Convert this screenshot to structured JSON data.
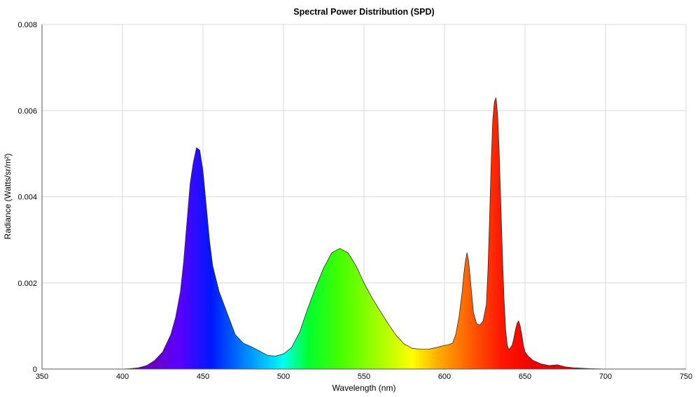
{
  "chart_data": {
    "type": "area",
    "title": "Spectral Power Distribution (SPD)",
    "xlabel": "Wavelength (nm)",
    "ylabel": "Radiance (Watts/sr/m²)",
    "xlim": [
      350,
      750
    ],
    "ylim": [
      0,
      0.008
    ],
    "x_ticks": [
      350,
      400,
      450,
      500,
      550,
      600,
      650,
      700,
      750
    ],
    "x_tick_labels": [
      "350",
      "400",
      "450",
      "500",
      "550",
      "600",
      "650",
      "700",
      "750"
    ],
    "y_ticks": [
      0,
      0.002,
      0.004,
      0.006,
      0.008
    ],
    "y_tick_labels": [
      "0",
      "0.002",
      "0.004",
      "0.006",
      "0.008"
    ],
    "grid": true,
    "fill": "spectral-rainbow",
    "x": [
      350,
      380,
      400,
      405,
      410,
      415,
      420,
      425,
      430,
      433,
      436,
      438,
      440,
      442,
      444,
      446,
      448,
      450,
      452,
      454,
      456,
      458,
      460,
      465,
      470,
      475,
      480,
      485,
      490,
      495,
      500,
      505,
      510,
      515,
      520,
      525,
      530,
      535,
      540,
      545,
      550,
      555,
      560,
      565,
      570,
      575,
      580,
      585,
      590,
      595,
      600,
      602,
      605,
      607,
      609,
      611,
      612,
      613,
      614,
      615,
      616,
      618,
      620,
      622,
      624,
      626,
      627,
      628,
      629,
      630,
      631,
      632,
      633,
      634,
      635,
      636,
      637,
      638,
      639,
      640,
      641,
      642,
      643,
      644,
      645,
      646,
      647,
      648,
      649,
      650,
      652,
      655,
      660,
      665,
      670,
      675,
      680,
      690,
      700,
      720,
      750
    ],
    "y": [
      0,
      0,
      0,
      1e-05,
      3e-05,
      8e-05,
      0.0002,
      0.0004,
      0.0008,
      0.0012,
      0.0018,
      0.0025,
      0.0034,
      0.0043,
      0.0048,
      0.00514,
      0.00508,
      0.0046,
      0.0038,
      0.003,
      0.0024,
      0.0021,
      0.0018,
      0.0013,
      0.0008,
      0.0006,
      0.00052,
      0.00042,
      0.00032,
      0.0003,
      0.00035,
      0.0005,
      0.00085,
      0.0014,
      0.0019,
      0.00235,
      0.0027,
      0.0028,
      0.0027,
      0.0024,
      0.002,
      0.00165,
      0.00135,
      0.00105,
      0.00078,
      0.00058,
      0.00048,
      0.00046,
      0.00046,
      0.0005,
      0.00055,
      0.00056,
      0.0006,
      0.0008,
      0.0012,
      0.0018,
      0.0022,
      0.0025,
      0.0027,
      0.0025,
      0.0021,
      0.0013,
      0.00105,
      0.00102,
      0.00112,
      0.0015,
      0.0023,
      0.0035,
      0.0048,
      0.0058,
      0.0062,
      0.0063,
      0.0059,
      0.005,
      0.0038,
      0.0026,
      0.0016,
      0.0009,
      0.00055,
      0.00045,
      0.0005,
      0.00055,
      0.0007,
      0.0009,
      0.00105,
      0.00112,
      0.001,
      0.0008,
      0.00055,
      0.0004,
      0.0003,
      0.0002,
      0.00012,
      8e-05,
      0.0001,
      5e-05,
      3e-05,
      1e-05,
      0,
      0,
      0
    ]
  }
}
